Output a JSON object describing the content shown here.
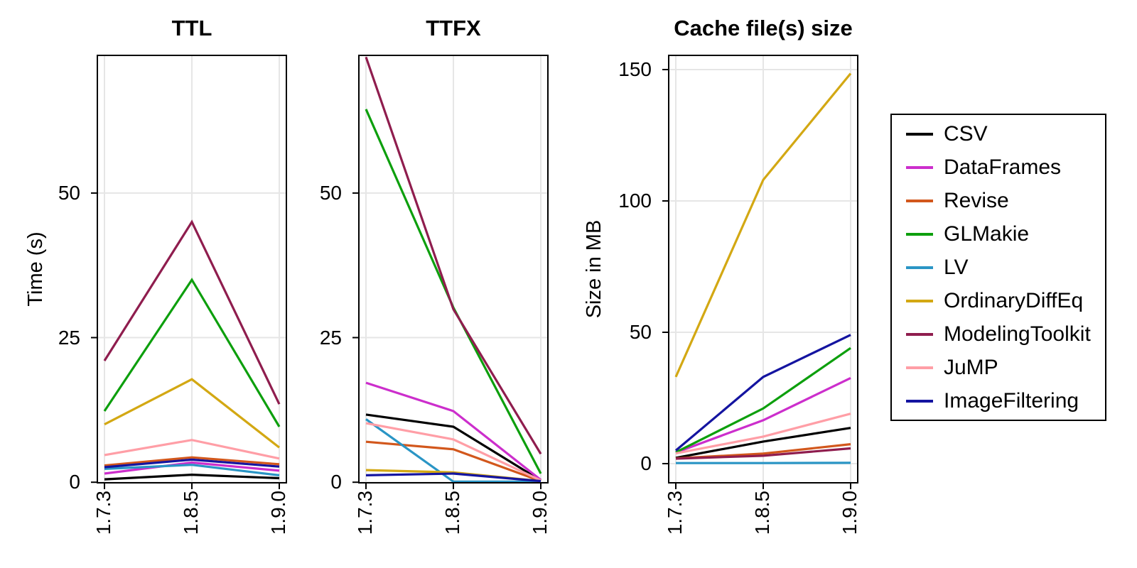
{
  "figure": {
    "background": "#FFFFFF",
    "grid_color": "#E6E6E6",
    "axis_color": "#000000"
  },
  "chart_data": [
    {
      "type": "line",
      "title": "TTL",
      "ylabel": "Time (s)",
      "x_categories": [
        "1.7.3",
        "1.8.5",
        "1.9.0"
      ],
      "yticks": [
        0,
        25,
        50
      ],
      "ylim": [
        -0.1,
        73.8
      ],
      "grid": true,
      "series": [
        {
          "name": "CSV",
          "color": "#000000",
          "values": [
            0.5,
            1.3,
            0.7
          ]
        },
        {
          "name": "DataFrames",
          "color": "#CC2ECC",
          "values": [
            1.5,
            3.4,
            2.0
          ]
        },
        {
          "name": "Revise",
          "color": "#D2571C",
          "values": [
            2.9,
            4.3,
            3.1
          ]
        },
        {
          "name": "GLMakie",
          "color": "#0D9F0D",
          "values": [
            12.3,
            35.0,
            9.6
          ]
        },
        {
          "name": "LV",
          "color": "#2A95C5",
          "values": [
            2.3,
            3.0,
            1.2
          ]
        },
        {
          "name": "OrdinaryDiffEq",
          "color": "#D3A813",
          "values": [
            10.0,
            17.8,
            6.0
          ]
        },
        {
          "name": "ModelingToolkit",
          "color": "#8F1D4E",
          "values": [
            21.0,
            45.0,
            13.5
          ]
        },
        {
          "name": "JuMP",
          "color": "#FF9EA6",
          "values": [
            4.7,
            7.3,
            4.1
          ]
        },
        {
          "name": "ImageFiltering",
          "color": "#1414A0",
          "values": [
            2.6,
            3.9,
            2.7
          ]
        }
      ]
    },
    {
      "type": "line",
      "title": "TTFX",
      "ylabel": "",
      "x_categories": [
        "1.7.3",
        "1.8.5",
        "1.9.0"
      ],
      "yticks": [
        0,
        25,
        50
      ],
      "ylim": [
        -0.1,
        73.8
      ],
      "grid": true,
      "series": [
        {
          "name": "CSV",
          "color": "#000000",
          "values": [
            11.7,
            9.6,
            0.3
          ]
        },
        {
          "name": "DataFrames",
          "color": "#CC2ECC",
          "values": [
            17.2,
            12.3,
            0.4
          ]
        },
        {
          "name": "Revise",
          "color": "#D2571C",
          "values": [
            7.0,
            5.7,
            0.2
          ]
        },
        {
          "name": "GLMakie",
          "color": "#0D9F0D",
          "values": [
            64.5,
            30.2,
            1.5
          ]
        },
        {
          "name": "LV",
          "color": "#2A95C5",
          "values": [
            10.9,
            0.1,
            0.1
          ]
        },
        {
          "name": "OrdinaryDiffEq",
          "color": "#D3A813",
          "values": [
            2.1,
            1.7,
            0.2
          ]
        },
        {
          "name": "ModelingToolkit",
          "color": "#8F1D4E",
          "values": [
            73.5,
            29.9,
            4.9
          ]
        },
        {
          "name": "JuMP",
          "color": "#FF9EA6",
          "values": [
            10.2,
            7.4,
            0.3
          ]
        },
        {
          "name": "ImageFiltering",
          "color": "#1414A0",
          "values": [
            1.2,
            1.5,
            0.2
          ]
        }
      ]
    },
    {
      "type": "line",
      "title": "Cache file(s) size",
      "ylabel": "Size in MB",
      "x_categories": [
        "1.7.3",
        "1.8.5",
        "1.9.0"
      ],
      "yticks": [
        0,
        50,
        100,
        150
      ],
      "ylim": [
        -7.3,
        155.4
      ],
      "grid": true,
      "series": [
        {
          "name": "CSV",
          "color": "#000000",
          "values": [
            2.2,
            8.4,
            13.6
          ]
        },
        {
          "name": "DataFrames",
          "color": "#CC2ECC",
          "values": [
            4.2,
            16.5,
            32.6
          ]
        },
        {
          "name": "Revise",
          "color": "#D2571C",
          "values": [
            2.0,
            3.8,
            7.4
          ]
        },
        {
          "name": "GLMakie",
          "color": "#0D9F0D",
          "values": [
            4.3,
            21.0,
            44.0
          ]
        },
        {
          "name": "LV",
          "color": "#2A95C5",
          "values": [
            0.2,
            0.2,
            0.3
          ]
        },
        {
          "name": "OrdinaryDiffEq",
          "color": "#D3A813",
          "values": [
            33.0,
            108.0,
            148.5
          ]
        },
        {
          "name": "ModelingToolkit",
          "color": "#8F1D4E",
          "values": [
            1.9,
            3.0,
            5.8
          ]
        },
        {
          "name": "JuMP",
          "color": "#FF9EA6",
          "values": [
            3.9,
            10.3,
            19.0
          ]
        },
        {
          "name": "ImageFiltering",
          "color": "#1414A0",
          "values": [
            5.0,
            33.0,
            49.0
          ]
        }
      ]
    }
  ],
  "legend": {
    "position": "right",
    "entries": [
      {
        "label": "CSV",
        "color": "#000000"
      },
      {
        "label": "DataFrames",
        "color": "#CC2ECC"
      },
      {
        "label": "Revise",
        "color": "#D2571C"
      },
      {
        "label": "GLMakie",
        "color": "#0D9F0D"
      },
      {
        "label": "LV",
        "color": "#2A95C5"
      },
      {
        "label": "OrdinaryDiffEq",
        "color": "#D3A813"
      },
      {
        "label": "ModelingToolkit",
        "color": "#8F1D4E"
      },
      {
        "label": "JuMP",
        "color": "#FF9EA6"
      },
      {
        "label": "ImageFiltering",
        "color": "#1414A0"
      }
    ]
  }
}
